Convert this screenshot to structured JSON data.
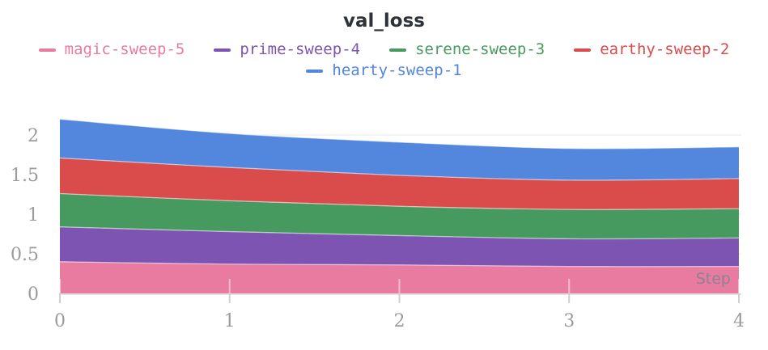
{
  "title": "val_loss",
  "legend": {
    "items": [
      {
        "label": "magic-sweep-5",
        "color": "#E87B9F"
      },
      {
        "label": "prime-sweep-4",
        "color": "#7D54B2"
      },
      {
        "label": "serene-sweep-3",
        "color": "#479A5F"
      },
      {
        "label": "earthy-sweep-2",
        "color": "#DA4C4C"
      },
      {
        "label": "hearty-sweep-1",
        "color": "#5387DD"
      }
    ]
  },
  "chart_data": {
    "type": "area",
    "stacked": true,
    "smoothing": "catmull-rom",
    "title": "val_loss",
    "xlabel": "Step",
    "ylabel": "",
    "x": [
      0,
      1,
      2,
      3,
      4
    ],
    "xticks": [
      0,
      1,
      2,
      3,
      4
    ],
    "yticks": [
      0,
      0.5,
      1,
      1.5,
      2
    ],
    "xlim": [
      0,
      4
    ],
    "ylim": [
      0,
      2.25
    ],
    "grid": "horizontal",
    "legend_position": "top",
    "series": [
      {
        "name": "magic-sweep-5",
        "color": "#E87B9F",
        "values": [
          0.4,
          0.37,
          0.36,
          0.34,
          0.34
        ]
      },
      {
        "name": "prime-sweep-4",
        "color": "#7D54B2",
        "values": [
          0.44,
          0.41,
          0.37,
          0.35,
          0.36
        ]
      },
      {
        "name": "serene-sweep-3",
        "color": "#479A5F",
        "values": [
          0.42,
          0.39,
          0.37,
          0.37,
          0.37
        ]
      },
      {
        "name": "earthy-sweep-2",
        "color": "#DA4C4C",
        "values": [
          0.45,
          0.42,
          0.39,
          0.37,
          0.38
        ]
      },
      {
        "name": "hearty-sweep-1",
        "color": "#5387DD",
        "values": [
          0.49,
          0.43,
          0.42,
          0.4,
          0.4
        ]
      }
    ],
    "colors": {
      "title": "#2e333a",
      "tick_label": "#9b9b9b",
      "gridline": "#ececec",
      "baseline": "#dcdcdc",
      "tick_mark": "#cfcfcf",
      "step_label": "#8c8490"
    }
  }
}
